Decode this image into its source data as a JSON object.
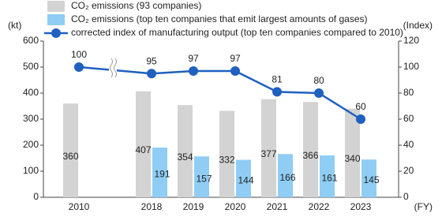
{
  "chart_data": {
    "type": "bar_line",
    "y_unit": "(kt)",
    "y2_unit": "(Index)",
    "x_unit": "(FY)",
    "categories": [
      "2010",
      "2018",
      "2019",
      "2020",
      "2021",
      "2022",
      "2023"
    ],
    "series": [
      {
        "name": "CO₂ emissions (93 companies)",
        "type": "bar",
        "color": "#d3d3d3",
        "values": [
          360,
          407,
          354,
          332,
          377,
          366,
          340
        ]
      },
      {
        "name": "CO₂ emissions (top ten companies that emit largest amounts of gases)",
        "type": "bar",
        "color": "#8fcdf5",
        "values": [
          null,
          191,
          157,
          144,
          166,
          161,
          145
        ]
      },
      {
        "name": "corrected index of manufacturing output (top ten companies compared to 2010)",
        "type": "line",
        "axis": "y2",
        "color": "#2060c0",
        "values": [
          100,
          95,
          97,
          97,
          81,
          80,
          60
        ]
      }
    ],
    "ylim": [
      0,
      600
    ],
    "yticks": [
      0,
      100,
      200,
      300,
      400,
      500,
      600
    ],
    "y2lim": [
      0,
      120
    ],
    "y2ticks": [
      0,
      20,
      40,
      60,
      80,
      100,
      120
    ]
  }
}
